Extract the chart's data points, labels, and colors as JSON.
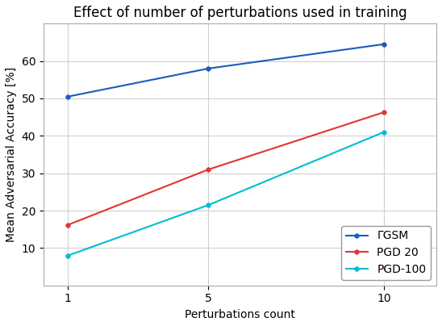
{
  "title": "Effect of number of perturbations used in training",
  "xlabel": "Perturbations count",
  "ylabel": "Mean Adversarial Accuracy [%]",
  "x": [
    1,
    5,
    10
  ],
  "series": [
    {
      "label": "ΓGSM",
      "values": [
        50.5,
        58.0,
        64.5
      ],
      "color": "#1a5bbf",
      "marker": "o",
      "linewidth": 1.5
    },
    {
      "label": "PGD 20",
      "values": [
        16.2,
        31.0,
        46.3
      ],
      "color": "#e03535",
      "marker": "o",
      "linewidth": 1.5
    },
    {
      "label": "PGD-100",
      "values": [
        8.0,
        21.5,
        41.0
      ],
      "color": "#00bcd4",
      "marker": "o",
      "linewidth": 1.5
    }
  ],
  "ylim": [
    0,
    70
  ],
  "yticks": [
    10,
    20,
    30,
    40,
    50,
    60
  ],
  "xticks": [
    1,
    5,
    10
  ],
  "legend_loc": "lower right",
  "grid": true,
  "background_color": "#ffffff",
  "title_fontsize": 12,
  "label_fontsize": 10,
  "tick_fontsize": 10,
  "legend_fontsize": 10,
  "figwidth": 5.48,
  "figheight": 4.04,
  "dpi": 100
}
